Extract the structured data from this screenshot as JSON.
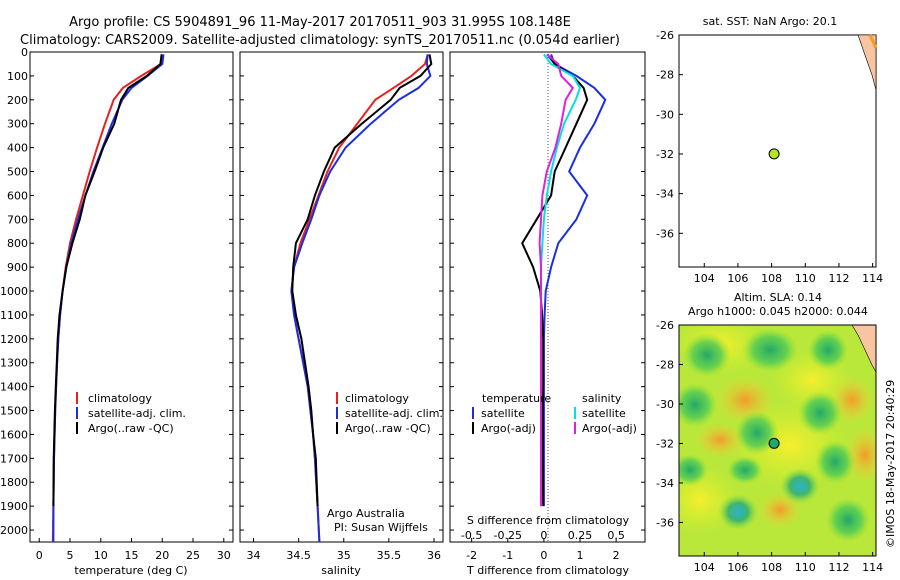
{
  "header": {
    "line1": "Argo profile: CS 5904891_96 11-May-2017 20170511_903 31.995S 108.148E",
    "line2": "Climatology: CARS2009. Satellite-adjusted climatology: synTS_20170511.nc (0.054d earlier)"
  },
  "colors": {
    "climatology": "#e8211e",
    "satellite": "#1b2fe0",
    "argo": "#000000",
    "salinity_satellite": "#00e0e6",
    "salinity_argo": "#e020e0",
    "float_marker": "#b5e61d",
    "coast": "#f9c5a0"
  },
  "panels": {
    "temperature": {
      "xlabel": "temperature (deg C)",
      "xticks": [
        "0",
        "5",
        "10",
        "15",
        "20",
        "25",
        "30"
      ],
      "legend": [
        "climatology",
        "satellite-adj. clim.",
        "Argo(..raw -QC)"
      ]
    },
    "salinity": {
      "xlabel": "salinity",
      "xticks": [
        "34",
        "34.5",
        "35",
        "35.5",
        "36"
      ],
      "legend": [
        "climatology",
        "satellite-adj. clim.",
        "Argo(..raw -QC)"
      ],
      "credit1": "Argo Australia",
      "credit2": "PI: Susan Wijffels"
    },
    "difference": {
      "xlabel": "T difference from climatology",
      "s_label": "S difference from climatology",
      "t_ticks": [
        "-2",
        "-1",
        "0",
        "1",
        "2"
      ],
      "s_ticks": [
        "-0.5",
        "-0.25",
        "0",
        "0.25",
        "0.5"
      ],
      "legend_t_title": "temperature",
      "legend_s_title": "salinity",
      "legend_t": [
        "satellite",
        "Argo(-adj)"
      ],
      "legend_s": [
        "satellite",
        "Argo(-adj)"
      ]
    },
    "depth_ticks": [
      "0",
      "100",
      "200",
      "300",
      "400",
      "500",
      "600",
      "700",
      "800",
      "900",
      "1000",
      "1100",
      "1200",
      "1300",
      "1400",
      "1500",
      "1600",
      "1700",
      "1800",
      "1900",
      "2000"
    ]
  },
  "maps": {
    "sst_title": "sat. SST: NaN Argo: 20.1",
    "sla_title1": "Altim. SLA: 0.14",
    "sla_title2": "Argo h1000: 0.045 h2000: 0.044",
    "lon_ticks": [
      "104",
      "106",
      "108",
      "110",
      "112",
      "114"
    ],
    "lat_ticks": [
      "-26",
      "-28",
      "-30",
      "-32",
      "-34",
      "-36"
    ],
    "float_lon": 108.148,
    "float_lat": -31.995
  },
  "stamp": "©IMOS 18-May-2017 20:40:29",
  "chart_data": [
    {
      "type": "line",
      "xlabel": "temperature (deg C)",
      "ylabel": "",
      "xlim": [
        -1.5,
        31.5
      ],
      "ylim": [
        2050,
        0
      ],
      "series": [
        {
          "name": "climatology",
          "x": [
            20.0,
            19.8,
            16.6,
            13.6,
            12.1,
            10.7,
            9.4,
            8.2,
            7.1,
            6.0,
            5.0,
            4.3,
            3.8,
            3.4,
            3.1,
            2.9,
            2.75,
            2.6,
            2.5,
            2.4,
            2.3,
            2.2
          ],
          "y": [
            10,
            50,
            100,
            150,
            200,
            300,
            400,
            500,
            600,
            700,
            800,
            900,
            1000,
            1100,
            1200,
            1300,
            1400,
            1500,
            1600,
            1700,
            1900,
            2050
          ]
        },
        {
          "name": "satellite-adj. clim.",
          "x": [
            20.2,
            20.0,
            17.6,
            15.0,
            13.5,
            11.8,
            10.3,
            8.8,
            7.5,
            6.3,
            5.2,
            4.4,
            3.8,
            3.4,
            3.1,
            2.9,
            2.75,
            2.6,
            2.5,
            2.4,
            2.3,
            2.3
          ],
          "y": [
            10,
            50,
            100,
            150,
            200,
            300,
            400,
            500,
            600,
            700,
            800,
            900,
            1000,
            1100,
            1200,
            1300,
            1400,
            1500,
            1600,
            1700,
            1900,
            2050
          ]
        },
        {
          "name": "Argo(..raw -QC)",
          "x": [
            19.9,
            19.7,
            17.5,
            14.5,
            13.3,
            12.2,
            10.4,
            9.0,
            7.5,
            6.6,
            5.4,
            4.4,
            3.8,
            3.3,
            3.0,
            2.85,
            2.7,
            2.55,
            2.45,
            2.35,
            2.3
          ],
          "y": [
            10,
            50,
            100,
            150,
            200,
            300,
            400,
            500,
            600,
            700,
            800,
            900,
            1000,
            1100,
            1200,
            1300,
            1400,
            1500,
            1600,
            1700,
            1900
          ]
        }
      ]
    },
    {
      "type": "line",
      "xlabel": "salinity",
      "ylabel": "",
      "xlim": [
        33.85,
        36.1
      ],
      "ylim": [
        2050,
        0
      ],
      "series": [
        {
          "name": "climatology",
          "x": [
            35.93,
            35.9,
            35.75,
            35.55,
            35.35,
            35.15,
            34.95,
            34.82,
            34.72,
            34.62,
            34.52,
            34.45,
            34.42,
            34.45,
            34.5,
            34.55,
            34.6,
            34.63,
            34.66,
            34.68,
            34.71,
            34.73
          ],
          "y": [
            10,
            50,
            100,
            150,
            200,
            300,
            400,
            500,
            600,
            700,
            800,
            900,
            1000,
            1100,
            1200,
            1300,
            1400,
            1500,
            1600,
            1700,
            1900,
            2050
          ]
        },
        {
          "name": "satellite-adj. clim.",
          "x": [
            35.93,
            35.92,
            35.96,
            35.83,
            35.61,
            35.3,
            35.02,
            34.85,
            34.73,
            34.64,
            34.54,
            34.45,
            34.42,
            34.45,
            34.5,
            34.55,
            34.6,
            34.63,
            34.66,
            34.68,
            34.71,
            34.73
          ],
          "y": [
            10,
            50,
            100,
            150,
            200,
            300,
            400,
            500,
            600,
            700,
            800,
            900,
            1000,
            1100,
            1200,
            1300,
            1400,
            1500,
            1600,
            1700,
            1900,
            2050
          ]
        },
        {
          "name": "Argo(..raw -QC)",
          "x": [
            35.95,
            35.97,
            35.85,
            35.62,
            35.52,
            35.2,
            34.9,
            34.78,
            34.68,
            34.6,
            34.47,
            34.44,
            34.43,
            34.47,
            34.53,
            34.57,
            34.61,
            34.64,
            34.66,
            34.69,
            34.71
          ],
          "y": [
            10,
            50,
            100,
            150,
            200,
            300,
            400,
            500,
            600,
            700,
            800,
            900,
            1000,
            1100,
            1200,
            1300,
            1400,
            1500,
            1600,
            1700,
            1900
          ]
        }
      ]
    },
    {
      "type": "line",
      "xlabel": "T difference from climatology",
      "ylabel": "",
      "xlim": [
        -2.6,
        2.8
      ],
      "ylim": [
        2050,
        0
      ],
      "series": [
        {
          "name": "temperature satellite",
          "x": [
            0.2,
            0.3,
            0.9,
            1.4,
            1.7,
            1.4,
            1.0,
            0.7,
            1.2,
            0.9,
            0.4,
            0.2,
            0.05,
            0.02,
            0.0,
            0.0,
            0.0,
            0.0,
            0.0,
            0.0,
            0.0
          ],
          "y": [
            10,
            50,
            100,
            150,
            200,
            300,
            400,
            500,
            600,
            700,
            800,
            900,
            1000,
            1100,
            1200,
            1300,
            1400,
            1500,
            1600,
            1700,
            1900
          ]
        },
        {
          "name": "temperature Argo(-adj)",
          "x": [
            0.1,
            0.3,
            0.8,
            1.1,
            1.2,
            0.9,
            0.6,
            0.3,
            0.2,
            -0.2,
            -0.6,
            -0.3,
            -0.1,
            -0.05,
            -0.02,
            -0.02,
            -0.02,
            -0.03,
            -0.03,
            -0.03,
            -0.02
          ],
          "y": [
            10,
            50,
            100,
            150,
            200,
            300,
            400,
            500,
            600,
            700,
            800,
            900,
            1000,
            1100,
            1200,
            1300,
            1400,
            1500,
            1600,
            1700,
            1900
          ]
        },
        {
          "name": "salinity satellite",
          "x": [
            0.0,
            0.05,
            0.2,
            0.25,
            0.22,
            0.14,
            0.09,
            0.05,
            0.02,
            0.0,
            -0.01,
            -0.02,
            -0.02,
            -0.02,
            -0.02,
            -0.02,
            -0.02,
            -0.02,
            -0.02,
            -0.02,
            -0.02
          ],
          "y": [
            10,
            50,
            100,
            150,
            200,
            300,
            400,
            500,
            600,
            700,
            800,
            900,
            1000,
            1100,
            1200,
            1300,
            1400,
            1500,
            1600,
            1700,
            1900
          ]
        },
        {
          "name": "salinity Argo(-adj)",
          "x": [
            0.02,
            0.1,
            0.12,
            0.2,
            0.15,
            0.12,
            0.08,
            0.02,
            -0.01,
            -0.02,
            -0.03,
            -0.02,
            -0.02,
            -0.02,
            -0.02,
            -0.02,
            -0.02,
            -0.02,
            -0.02,
            -0.02,
            -0.02
          ],
          "y": [
            10,
            50,
            100,
            150,
            200,
            300,
            400,
            500,
            600,
            700,
            800,
            900,
            1000,
            1100,
            1200,
            1300,
            1400,
            1500,
            1600,
            1700,
            1900
          ]
        }
      ]
    }
  ]
}
